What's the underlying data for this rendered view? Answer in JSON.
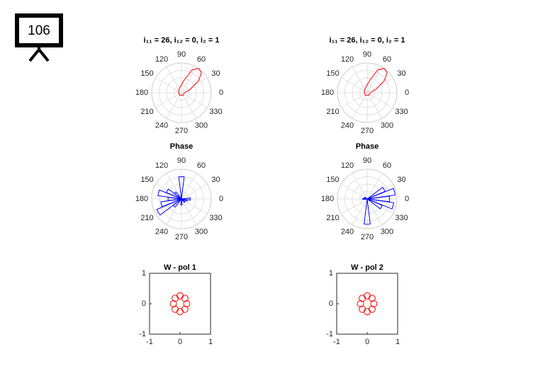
{
  "slide_number": "106",
  "chart_data": [
    {
      "type": "polar",
      "title": "i₁₁ = 26, i₁₂ = 0, i₂ = 1",
      "thetaticks": [
        0,
        30,
        60,
        90,
        120,
        150,
        180,
        210,
        240,
        270,
        300,
        330
      ],
      "rlim": [
        0,
        1
      ],
      "series": [
        {
          "color": "#ff0000",
          "theta": [
            0,
            20,
            35,
            45,
            55,
            65,
            80,
            120,
            180,
            240,
            300,
            360
          ],
          "r": [
            0.1,
            0.3,
            0.7,
            0.95,
            1.0,
            0.85,
            0.4,
            0.15,
            0.1,
            0.1,
            0.1,
            0.1
          ]
        }
      ]
    },
    {
      "type": "polar",
      "title": "i₁₁ = 26, i₁₂ = 0, i₂ = 1",
      "thetaticks": [
        0,
        30,
        60,
        90,
        120,
        150,
        180,
        210,
        240,
        270,
        300,
        330
      ],
      "rlim": [
        0,
        1
      ],
      "series": [
        {
          "color": "#ff0000",
          "theta": [
            0,
            20,
            35,
            45,
            55,
            65,
            80,
            120,
            180,
            240,
            300,
            360
          ],
          "r": [
            0.1,
            0.3,
            0.7,
            0.95,
            1.0,
            0.85,
            0.4,
            0.15,
            0.1,
            0.1,
            0.1,
            0.1
          ]
        }
      ]
    },
    {
      "type": "polar-bar",
      "title": "Phase",
      "thetaticks": [
        0,
        30,
        60,
        90,
        120,
        150,
        180,
        210,
        240,
        270,
        300,
        330
      ],
      "rlim": [
        0,
        1
      ],
      "color": "#0000ff",
      "theta": [
        90,
        135,
        150,
        165,
        180,
        195,
        210,
        225,
        270,
        315,
        345,
        0
      ],
      "r": [
        0.75,
        0.3,
        0.55,
        0.8,
        0.45,
        0.7,
        0.9,
        0.35,
        0.2,
        0.15,
        0.2,
        0.3
      ]
    },
    {
      "type": "polar-bar",
      "title": "Phase",
      "thetaticks": [
        0,
        30,
        60,
        90,
        120,
        150,
        180,
        210,
        240,
        270,
        300,
        330
      ],
      "rlim": [
        0,
        1
      ],
      "color": "#0000ff",
      "theta": [
        270,
        0,
        15,
        30,
        345,
        330,
        180,
        150
      ],
      "r": [
        0.85,
        0.75,
        0.95,
        0.65,
        0.9,
        0.55,
        0.15,
        0.1
      ]
    },
    {
      "type": "scatter",
      "title": "W - pol 1",
      "color": "#ff0000",
      "x": [
        0.22,
        0.16,
        0,
        -0.16,
        -0.22,
        -0.16,
        0,
        0.16
      ],
      "y": [
        0,
        0.18,
        0.26,
        0.18,
        0,
        -0.18,
        -0.26,
        -0.18
      ],
      "xlim": [
        -1,
        1
      ],
      "ylim": [
        -1,
        1
      ],
      "xticks": [
        -1,
        0,
        1
      ],
      "yticks": [
        -1,
        0,
        1
      ]
    },
    {
      "type": "scatter",
      "title": "W - pol 2",
      "color": "#ff0000",
      "x": [
        0.22,
        0.16,
        0,
        -0.16,
        -0.22,
        -0.16,
        0,
        0.16
      ],
      "y": [
        0,
        0.18,
        0.26,
        0.18,
        0,
        -0.18,
        -0.26,
        -0.18
      ],
      "xlim": [
        -1,
        1
      ],
      "ylim": [
        -1,
        1
      ],
      "xticks": [
        -1,
        0,
        1
      ],
      "yticks": [
        -1,
        0,
        1
      ]
    }
  ]
}
